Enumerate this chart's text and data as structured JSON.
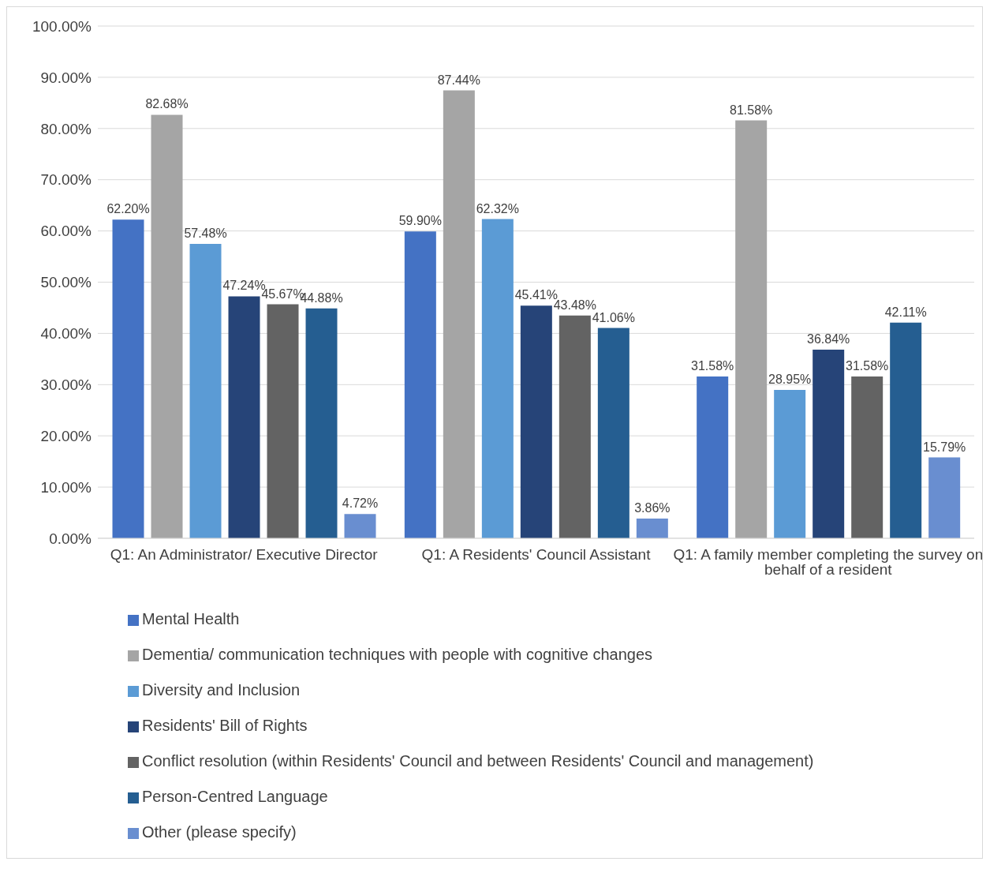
{
  "chart_data": {
    "type": "bar",
    "categories": [
      "Q1: An Administrator/ Executive Director",
      "Q1: A Residents' Council Assistant",
      "Q1: A family member completing the survey on behalf of a resident"
    ],
    "series": [
      {
        "name": "Mental Health",
        "color": "#4472c4",
        "values": [
          62.2,
          59.9,
          31.58
        ],
        "value_labels": [
          "62.20%",
          "59.90%",
          "31.58%"
        ]
      },
      {
        "name": "Dementia/ communication techniques with people with cognitive changes",
        "color": "#a5a5a5",
        "values": [
          82.68,
          87.44,
          81.58
        ],
        "value_labels": [
          "82.68%",
          "87.44%",
          "81.58%"
        ]
      },
      {
        "name": "Diversity and Inclusion",
        "color": "#5b9bd5",
        "values": [
          57.48,
          62.32,
          28.95
        ],
        "value_labels": [
          "57.48%",
          "62.32%",
          "28.95%"
        ]
      },
      {
        "name": "Residents' Bill of Rights",
        "color": "#264478",
        "values": [
          47.24,
          45.41,
          36.84
        ],
        "value_labels": [
          "47.24%",
          "45.41%",
          "36.84%"
        ]
      },
      {
        "name": "Conflict resolution (within Residents' Council and between Residents' Council and management)",
        "color": "#636363",
        "values": [
          45.67,
          43.48,
          31.58
        ],
        "value_labels": [
          "45.67%",
          "43.48%",
          "31.58%"
        ]
      },
      {
        "name": "Person-Centred Language",
        "color": "#255e91",
        "values": [
          44.88,
          41.06,
          42.11
        ],
        "value_labels": [
          "44.88%",
          "41.06%",
          "42.11%"
        ]
      },
      {
        "name": "Other (please specify)",
        "color": "#698ed0",
        "values": [
          4.72,
          3.86,
          15.79
        ],
        "value_labels": [
          "4.72%",
          "3.86%",
          "15.79%"
        ]
      }
    ],
    "ylim": [
      0,
      100
    ],
    "yticks": [
      {
        "value": 0,
        "label": "0.00%"
      },
      {
        "value": 10,
        "label": "10.00%"
      },
      {
        "value": 20,
        "label": "20.00%"
      },
      {
        "value": 30,
        "label": "30.00%"
      },
      {
        "value": 40,
        "label": "40.00%"
      },
      {
        "value": 50,
        "label": "50.00%"
      },
      {
        "value": 60,
        "label": "60.00%"
      },
      {
        "value": 70,
        "label": "70.00%"
      },
      {
        "value": 80,
        "label": "80.00%"
      },
      {
        "value": 90,
        "label": "90.00%"
      },
      {
        "value": 100,
        "label": "100.00%"
      }
    ],
    "grid": "y",
    "legend": "bottom"
  }
}
